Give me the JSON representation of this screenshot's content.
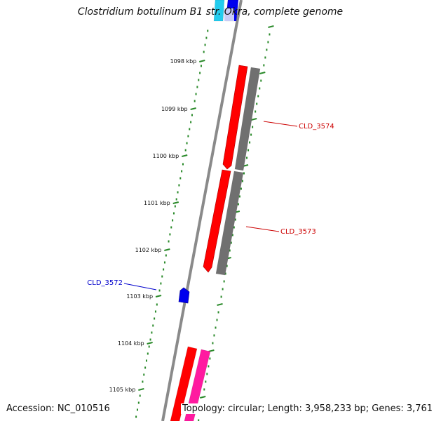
{
  "title": "Clostridium botulinum B1 str. Okra, complete genome",
  "footer": {
    "accession": "Accession: NC_010516",
    "topology": "Topology: circular; Length: 3,958,233 bp; Genes: 3,761"
  },
  "scale_ticks": [
    "1098 kbp",
    "1099 kbp",
    "1100 kbp",
    "1101 kbp",
    "1102 kbp",
    "1103 kbp",
    "1104 kbp",
    "1105 kbp"
  ],
  "gene_labels": [
    {
      "text": "CLD_3574",
      "color": "#cc0000"
    },
    {
      "text": "CLD_3573",
      "color": "#cc0000"
    },
    {
      "text": "CLD_3572",
      "color": "#0000cc"
    }
  ],
  "colors": {
    "backbone": "#8a8a8a",
    "tick": "#2a8a2a",
    "cds_red": "#ff0000",
    "cds_gray": "#707070",
    "cds_magenta": "#ff1aa0",
    "cds_blue": "#0000ee",
    "cds_cyan": "#22ccee"
  }
}
